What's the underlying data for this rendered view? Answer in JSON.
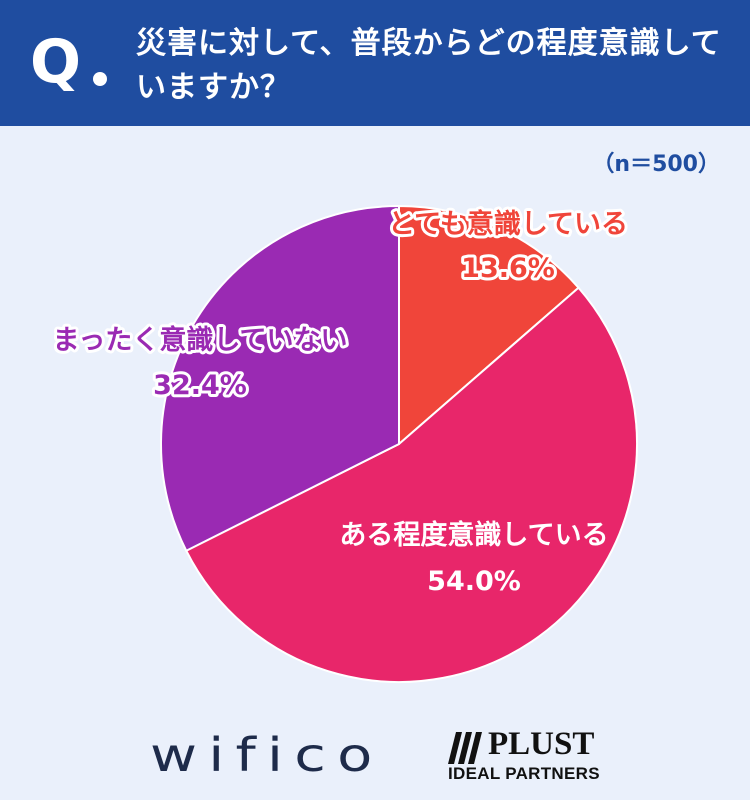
{
  "header": {
    "q_label": "Q",
    "question": "災害に対して、普段からどの程度意識していますか？"
  },
  "sample_size": "（n＝500）",
  "chart_data": {
    "type": "pie",
    "start_angle_deg": 0,
    "direction": "clockwise",
    "slices": [
      {
        "label": "とても意識している",
        "value": 13.6,
        "value_label": "13.6%",
        "color": "#f0453a"
      },
      {
        "label": "ある程度意識している",
        "value": 54.0,
        "value_label": "54.0%",
        "color": "#e8266a"
      },
      {
        "label": "まったく意識していない",
        "value": 32.4,
        "value_label": "32.4%",
        "color": "#9a2ab3"
      }
    ],
    "label_colors": [
      "#f0453a",
      "#ffffff",
      "#9a2ab3"
    ],
    "label_outline_colors": [
      "#ffffff",
      "#e8266a",
      "#ffffff"
    ]
  },
  "logos": {
    "left": "wifico",
    "right_name": "PLUST",
    "right_sub": "IDEAL PARTNERS"
  }
}
